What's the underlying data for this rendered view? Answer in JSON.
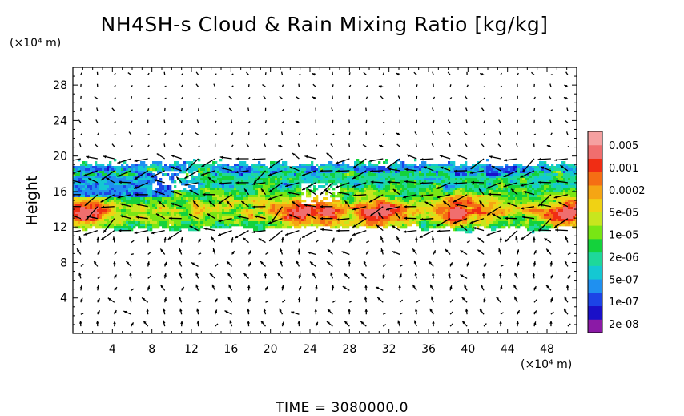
{
  "chart_data": {
    "type": "heatmap",
    "title": "NH4SH-s Cloud & Rain Mixing Ratio [kg/kg]",
    "ylabel": "Height",
    "yunit": "(×10⁴ m)",
    "xunit": "(×10⁴ m)",
    "time_label": "TIME  =  3080000.0",
    "xlim": [
      0,
      51
    ],
    "ylim": [
      0,
      30
    ],
    "xticks": [
      4,
      8,
      12,
      16,
      20,
      24,
      28,
      32,
      36,
      40,
      44,
      48
    ],
    "xtick_labels": [
      "4",
      "8",
      "12",
      "16",
      "20",
      "24",
      "28",
      "32",
      "36",
      "40",
      "44",
      "48"
    ],
    "yticks": [
      4,
      8,
      12,
      16,
      20,
      24,
      28
    ],
    "ytick_labels": [
      "4",
      "8",
      "12",
      "16",
      "20",
      "24",
      "28"
    ],
    "colorbar": {
      "labels": [
        "0.005",
        "0.001",
        "0.0002",
        "5e-05",
        "1e-05",
        "2e-06",
        "5e-07",
        "1e-07",
        "2e-08"
      ],
      "colors_bottom_to_top": [
        "#8b1aa6",
        "#1a10c8",
        "#1c44e6",
        "#1f90f0",
        "#14c8d2",
        "#1ed89a",
        "#14d23c",
        "#78e614",
        "#c8e61e",
        "#f0d214",
        "#f5a514",
        "#f56e14",
        "#f02d14",
        "#f06e6e",
        "#f5a0a0"
      ]
    },
    "cloud_layer": {
      "height_range": [
        12,
        19.5
      ],
      "core_height_range": [
        12.5,
        15
      ],
      "peak_regions_x": [
        1,
        23,
        25,
        31,
        39,
        50
      ]
    },
    "vectors": "wind field arrows across domain; strongest within cloud layer (12–19 ×10⁴ m)"
  }
}
